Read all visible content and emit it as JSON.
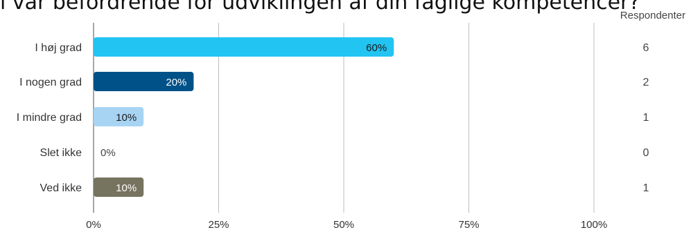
{
  "chart_data": {
    "type": "bar",
    "orientation": "horizontal",
    "title": "l var befordrende for udviklingen af din faglige kompetencer?",
    "categories": [
      "I høj grad",
      "I nogen grad",
      "I mindre grad",
      "Slet ikke",
      "Ved ikke"
    ],
    "values": [
      60,
      20,
      10,
      0,
      10
    ],
    "value_labels": [
      "60%",
      "20%",
      "10%",
      "0%",
      "10%"
    ],
    "respondents_header": "Respondenter",
    "respondents": [
      "6",
      "2",
      "1",
      "0",
      "1"
    ],
    "x_ticks": [
      "0%",
      "25%",
      "50%",
      "75%",
      "100%"
    ],
    "x_tick_values": [
      0,
      25,
      50,
      75,
      100
    ],
    "xlim": [
      0,
      100
    ],
    "grid": true,
    "colors": [
      "#22c4f2",
      "#005188",
      "#a8d4f4",
      "#9e9e9e",
      "#76735f"
    ],
    "label_colors": [
      "#1a1a1a",
      "#ffffff",
      "#1a1a1a",
      "#444444",
      "#ffffff"
    ]
  }
}
